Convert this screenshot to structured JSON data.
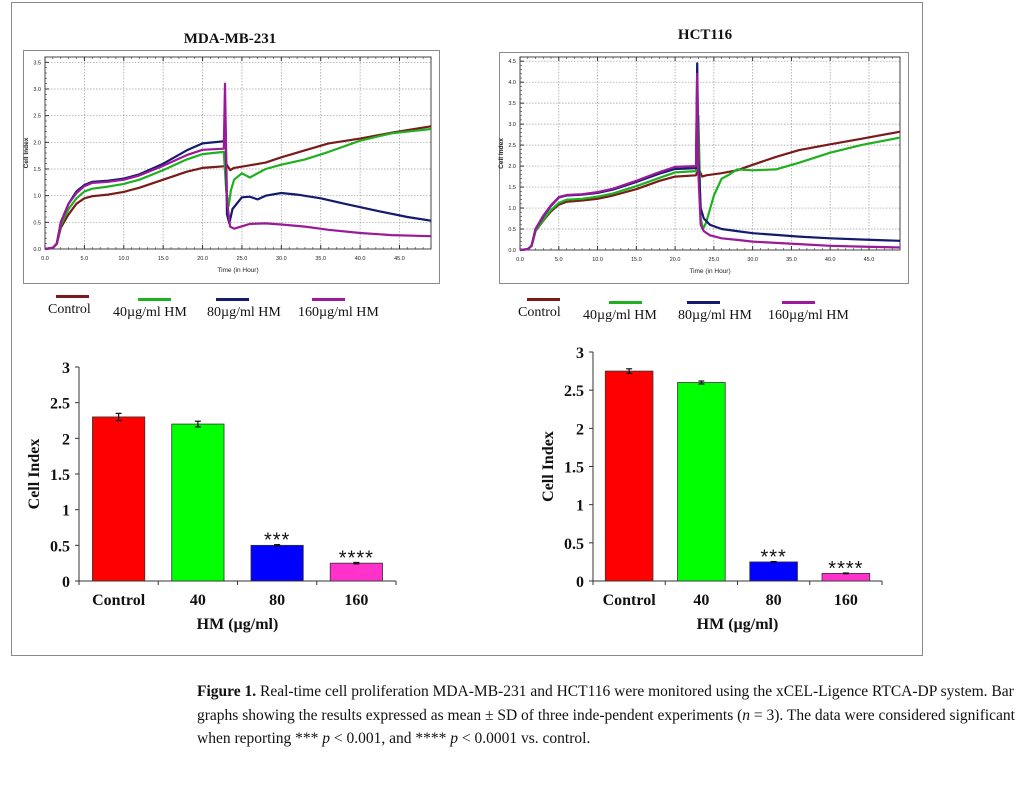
{
  "caption": {
    "label": "Figure 1.",
    "text_part1": " Real-time cell proliferation MDA-MB-231 and HCT116 were monitored using the xCEL-Ligence RTCA-DP system. Bar graphs showing the results expressed as mean ± SD of three inde-pendent experiments (",
    "n_symbol": "n",
    "text_part2": " = 3). The data were considered significant when reporting *** ",
    "p1_symbol": "p",
    "text_part3": " < 0.001, and **** ",
    "p2_symbol": "p",
    "text_part4": " < 0.0001 vs. control."
  },
  "legend": {
    "items": [
      {
        "label": "Control",
        "color": "#7a1a1a"
      },
      {
        "label": "40µg/ml HM",
        "color": "#1fb01f"
      },
      {
        "label": "80µg/ml HM",
        "color": "#141a6e"
      },
      {
        "label": "160µg/ml HM",
        "color": "#9a1a9a"
      }
    ]
  },
  "chart_data": [
    {
      "id": "mda-line",
      "type": "line",
      "title": "MDA-MB-231",
      "xlabel": "Time (in Hour)",
      "ylabel": "Cell Index",
      "xlim": [
        0,
        49
      ],
      "ylim": [
        0,
        3.6
      ],
      "xticks": [
        "0.0",
        "5.0",
        "10.0",
        "15.0",
        "20.0",
        "25.0",
        "30.0",
        "35.0",
        "40.0",
        "45.0"
      ],
      "xtick_values": [
        0,
        5,
        10,
        15,
        20,
        25,
        30,
        35,
        40,
        45
      ],
      "yticks": [
        "0.0",
        "0.5",
        "1.0",
        "1.5",
        "2.0",
        "2.5",
        "3.0",
        "3.5"
      ],
      "ytick_values": [
        0,
        0.5,
        1,
        1.5,
        2,
        2.5,
        3,
        3.5
      ],
      "grid": true,
      "series": [
        {
          "name": "Control",
          "color": "#7a1a1a",
          "x": [
            0,
            1,
            1.5,
            2,
            3,
            4,
            5,
            6,
            8,
            10,
            12,
            15,
            18,
            20,
            22.7,
            23,
            23.5,
            24,
            26,
            28,
            30,
            33,
            36,
            40,
            44,
            49
          ],
          "y": [
            0,
            0.02,
            0.1,
            0.4,
            0.65,
            0.85,
            0.95,
            0.99,
            1.02,
            1.07,
            1.15,
            1.3,
            1.45,
            1.52,
            1.55,
            1.6,
            1.48,
            1.52,
            1.57,
            1.62,
            1.72,
            1.85,
            1.98,
            2.07,
            2.18,
            2.3
          ]
        },
        {
          "name": "40µg/ml HM",
          "color": "#1fb01f",
          "x": [
            0,
            1,
            1.5,
            2,
            3,
            4,
            5,
            6,
            8,
            10,
            12,
            15,
            18,
            20,
            22.7,
            23,
            23.3,
            23.6,
            24,
            25,
            26,
            28,
            30,
            33,
            36,
            40,
            44,
            49
          ],
          "y": [
            0,
            0.02,
            0.1,
            0.45,
            0.75,
            0.95,
            1.08,
            1.13,
            1.17,
            1.22,
            1.3,
            1.48,
            1.68,
            1.78,
            1.82,
            1.1,
            0.8,
            1.1,
            1.3,
            1.42,
            1.34,
            1.5,
            1.58,
            1.68,
            1.82,
            2.03,
            2.17,
            2.25
          ]
        },
        {
          "name": "80µg/ml HM",
          "color": "#141a6e",
          "x": [
            0,
            1,
            1.5,
            2,
            3,
            4,
            5,
            6,
            8,
            10,
            12,
            15,
            18,
            20,
            22.7,
            22.9,
            23.1,
            23.4,
            23.8,
            25,
            26,
            27,
            28,
            30,
            32,
            35,
            38,
            42,
            46,
            49
          ],
          "y": [
            0,
            0.02,
            0.1,
            0.5,
            0.85,
            1.08,
            1.2,
            1.26,
            1.28,
            1.32,
            1.4,
            1.6,
            1.85,
            1.98,
            2.02,
            2.3,
            0.65,
            0.48,
            0.75,
            0.97,
            0.98,
            0.93,
            1.0,
            1.05,
            1.02,
            0.95,
            0.85,
            0.72,
            0.6,
            0.53
          ]
        },
        {
          "name": "160µg/ml HM",
          "color": "#9a1a9a",
          "x": [
            0,
            1,
            1.5,
            2,
            3,
            4,
            5,
            6,
            8,
            10,
            12,
            15,
            18,
            20,
            22.7,
            22.85,
            23.1,
            23.5,
            24,
            26,
            28,
            30,
            33,
            36,
            40,
            44,
            49
          ],
          "y": [
            0,
            0.02,
            0.1,
            0.5,
            0.85,
            1.05,
            1.18,
            1.24,
            1.26,
            1.3,
            1.38,
            1.56,
            1.76,
            1.86,
            1.88,
            3.1,
            0.9,
            0.42,
            0.38,
            0.47,
            0.48,
            0.46,
            0.42,
            0.36,
            0.3,
            0.26,
            0.24
          ]
        }
      ]
    },
    {
      "id": "hct-line",
      "type": "line",
      "title": "HCT116",
      "xlabel": "Time (in Hour)",
      "ylabel": "Cell Index",
      "xlim": [
        0,
        49
      ],
      "ylim": [
        0,
        4.6
      ],
      "xticks": [
        "0.0",
        "5.0",
        "10.0",
        "15.0",
        "20.0",
        "25.0",
        "30.0",
        "35.0",
        "40.0",
        "45.0"
      ],
      "xtick_values": [
        0,
        5,
        10,
        15,
        20,
        25,
        30,
        35,
        40,
        45
      ],
      "yticks": [
        "0.0",
        "0.5",
        "1.0",
        "1.5",
        "2.0",
        "2.5",
        "3.0",
        "3.5",
        "4.0",
        "4.5"
      ],
      "ytick_values": [
        0,
        0.5,
        1,
        1.5,
        2,
        2.5,
        3,
        3.5,
        4,
        4.5
      ],
      "grid": true,
      "series": [
        {
          "name": "Control",
          "color": "#7a1a1a",
          "x": [
            0,
            1,
            1.5,
            2,
            3,
            4,
            5,
            6,
            8,
            10,
            12,
            15,
            18,
            20,
            22.7,
            23,
            23.5,
            24,
            26,
            28,
            30,
            33,
            36,
            40,
            44,
            49
          ],
          "y": [
            0,
            0.02,
            0.1,
            0.45,
            0.7,
            0.92,
            1.08,
            1.15,
            1.18,
            1.22,
            1.3,
            1.45,
            1.65,
            1.75,
            1.78,
            1.95,
            1.75,
            1.78,
            1.83,
            1.9,
            2.03,
            2.22,
            2.38,
            2.52,
            2.65,
            2.82
          ]
        },
        {
          "name": "40µg/ml HM",
          "color": "#1fb01f",
          "x": [
            0,
            1,
            1.5,
            2,
            3,
            4,
            5,
            6,
            8,
            10,
            12,
            15,
            18,
            20,
            22.7,
            23,
            23.3,
            23.6,
            24,
            25,
            26,
            27,
            28,
            30,
            33,
            36,
            40,
            44,
            49
          ],
          "y": [
            0,
            0.02,
            0.1,
            0.45,
            0.72,
            0.95,
            1.12,
            1.2,
            1.22,
            1.27,
            1.35,
            1.52,
            1.72,
            1.85,
            1.88,
            3.2,
            0.75,
            0.5,
            0.65,
            1.3,
            1.7,
            1.8,
            1.92,
            1.9,
            1.92,
            2.08,
            2.32,
            2.5,
            2.68
          ]
        },
        {
          "name": "80µg/ml HM",
          "color": "#141a6e",
          "x": [
            0,
            1,
            1.5,
            2,
            3,
            4,
            5,
            6,
            8,
            10,
            12,
            15,
            18,
            20,
            22.7,
            22.85,
            23.0,
            23.3,
            23.7,
            24.5,
            26,
            28,
            30,
            33,
            36,
            40,
            44,
            49
          ],
          "y": [
            0,
            0.02,
            0.1,
            0.5,
            0.8,
            1.05,
            1.25,
            1.3,
            1.32,
            1.36,
            1.44,
            1.62,
            1.82,
            1.93,
            1.95,
            4.45,
            2.2,
            1.0,
            0.75,
            0.6,
            0.5,
            0.45,
            0.4,
            0.36,
            0.32,
            0.28,
            0.25,
            0.22
          ]
        },
        {
          "name": "160µg/ml HM",
          "color": "#9a1a9a",
          "x": [
            0,
            1,
            1.5,
            2,
            3,
            4,
            5,
            6,
            8,
            10,
            12,
            15,
            18,
            20,
            22.7,
            22.85,
            23.0,
            23.3,
            23.7,
            24.5,
            26,
            28,
            30,
            33,
            36,
            40,
            44,
            49
          ],
          "y": [
            0,
            0.02,
            0.1,
            0.5,
            0.82,
            1.07,
            1.26,
            1.31,
            1.33,
            1.38,
            1.46,
            1.65,
            1.86,
            1.98,
            2.0,
            4.2,
            1.8,
            0.6,
            0.45,
            0.35,
            0.28,
            0.24,
            0.2,
            0.17,
            0.14,
            0.1,
            0.08,
            0.06
          ]
        }
      ]
    },
    {
      "id": "mda-bar",
      "type": "bar",
      "title": "",
      "xlabel": "HM (µg/ml)",
      "ylabel": "Cell Index",
      "ylim": [
        0,
        3
      ],
      "yticks": [
        "0",
        "0.5",
        "1",
        "1.5",
        "2",
        "2.5",
        "3"
      ],
      "ytick_values": [
        0,
        0.5,
        1,
        1.5,
        2,
        2.5,
        3
      ],
      "categories": [
        "Control",
        "40",
        "80",
        "160"
      ],
      "values": [
        2.3,
        2.2,
        0.5,
        0.25
      ],
      "errors": [
        0.05,
        0.04,
        0.01,
        0.01
      ],
      "significance": [
        "",
        "",
        "***",
        "****"
      ],
      "colors": [
        "#ff0000",
        "#00ff00",
        "#0000ff",
        "#ff33cc"
      ]
    },
    {
      "id": "hct-bar",
      "type": "bar",
      "title": "",
      "xlabel": "HM (µg/ml)",
      "ylabel": "Cell Index",
      "ylim": [
        0,
        3
      ],
      "yticks": [
        "0",
        "0.5",
        "1",
        "1.5",
        "2",
        "2.5",
        "3"
      ],
      "ytick_values": [
        0,
        0.5,
        1,
        1.5,
        2,
        2.5,
        3
      ],
      "categories": [
        "Control",
        "40",
        "80",
        "160"
      ],
      "values": [
        2.75,
        2.6,
        0.25,
        0.1
      ],
      "errors": [
        0.03,
        0.02,
        0.005,
        0.005
      ],
      "significance": [
        "",
        "",
        "***",
        "****"
      ],
      "colors": [
        "#ff0000",
        "#00ff00",
        "#0000ff",
        "#ff33cc"
      ]
    }
  ]
}
